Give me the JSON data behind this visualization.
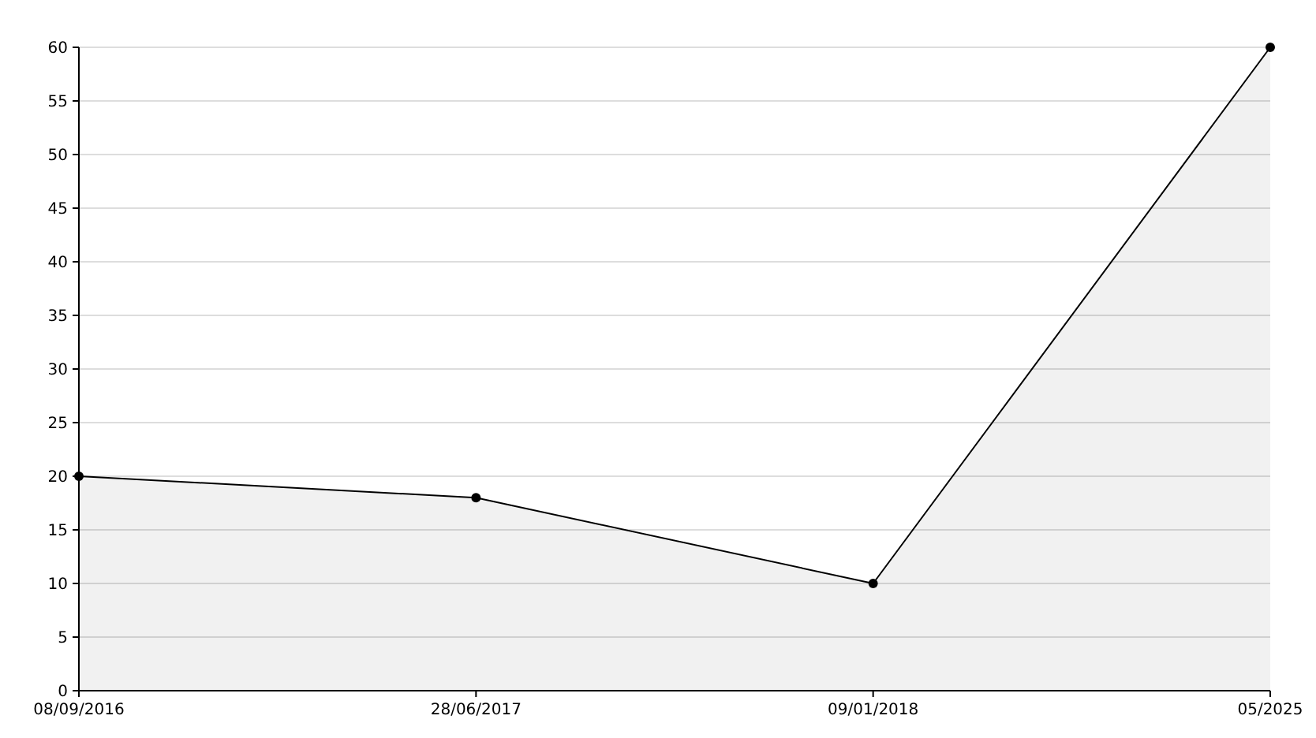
{
  "chart_data": {
    "type": "area",
    "categories": [
      "08/09/2016",
      "28/06/2017",
      "09/01/2018",
      "05/2025"
    ],
    "series": [
      {
        "color": "#000000",
        "values": [
          20,
          18,
          10,
          60
        ]
      }
    ],
    "ylim": [
      0,
      60
    ],
    "yticks": [
      0,
      5,
      10,
      15,
      20,
      25,
      30,
      35,
      40,
      45,
      50,
      55,
      60
    ],
    "grid": "y",
    "marker": "circle"
  }
}
